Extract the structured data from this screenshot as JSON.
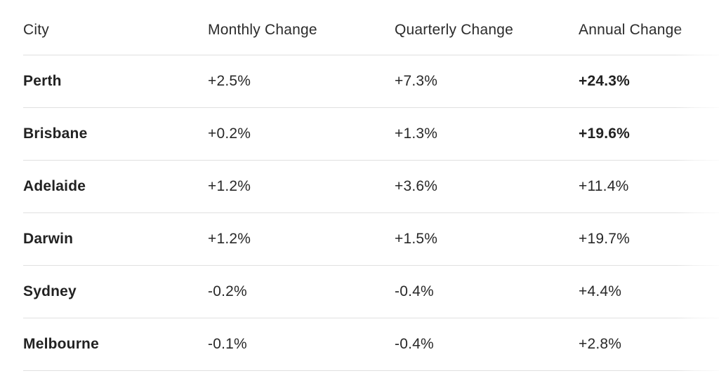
{
  "chart_data": {
    "type": "table",
    "columns": [
      "City",
      "Monthly Change",
      "Quarterly Change",
      "Annual Change"
    ],
    "rows": [
      {
        "city": "Perth",
        "monthly": "+2.5%",
        "quarterly": "+7.3%",
        "annual": "+24.3%",
        "annual_bold": true
      },
      {
        "city": "Brisbane",
        "monthly": "+0.2%",
        "quarterly": "+1.3%",
        "annual": "+19.6%",
        "annual_bold": true
      },
      {
        "city": "Adelaide",
        "monthly": "+1.2%",
        "quarterly": "+3.6%",
        "annual": "+11.4%",
        "annual_bold": false
      },
      {
        "city": "Darwin",
        "monthly": "+1.2%",
        "quarterly": "+1.5%",
        "annual": "+19.7%",
        "annual_bold": false
      },
      {
        "city": "Sydney",
        "monthly": "-0.2%",
        "quarterly": "-0.4%",
        "annual": "+4.4%",
        "annual_bold": false
      },
      {
        "city": "Melbourne",
        "monthly": "-0.1%",
        "quarterly": "-0.4%",
        "annual": "+2.8%",
        "annual_bold": false
      }
    ],
    "emphasis_note": "City names bold; annual values for Perth and Brisbane bold; 'Annual Change' header fades out at right edge"
  },
  "colors": {
    "background": "#ffffff",
    "text": "#282828",
    "bold_text": "#222222",
    "divider": "#e0e0e0"
  }
}
